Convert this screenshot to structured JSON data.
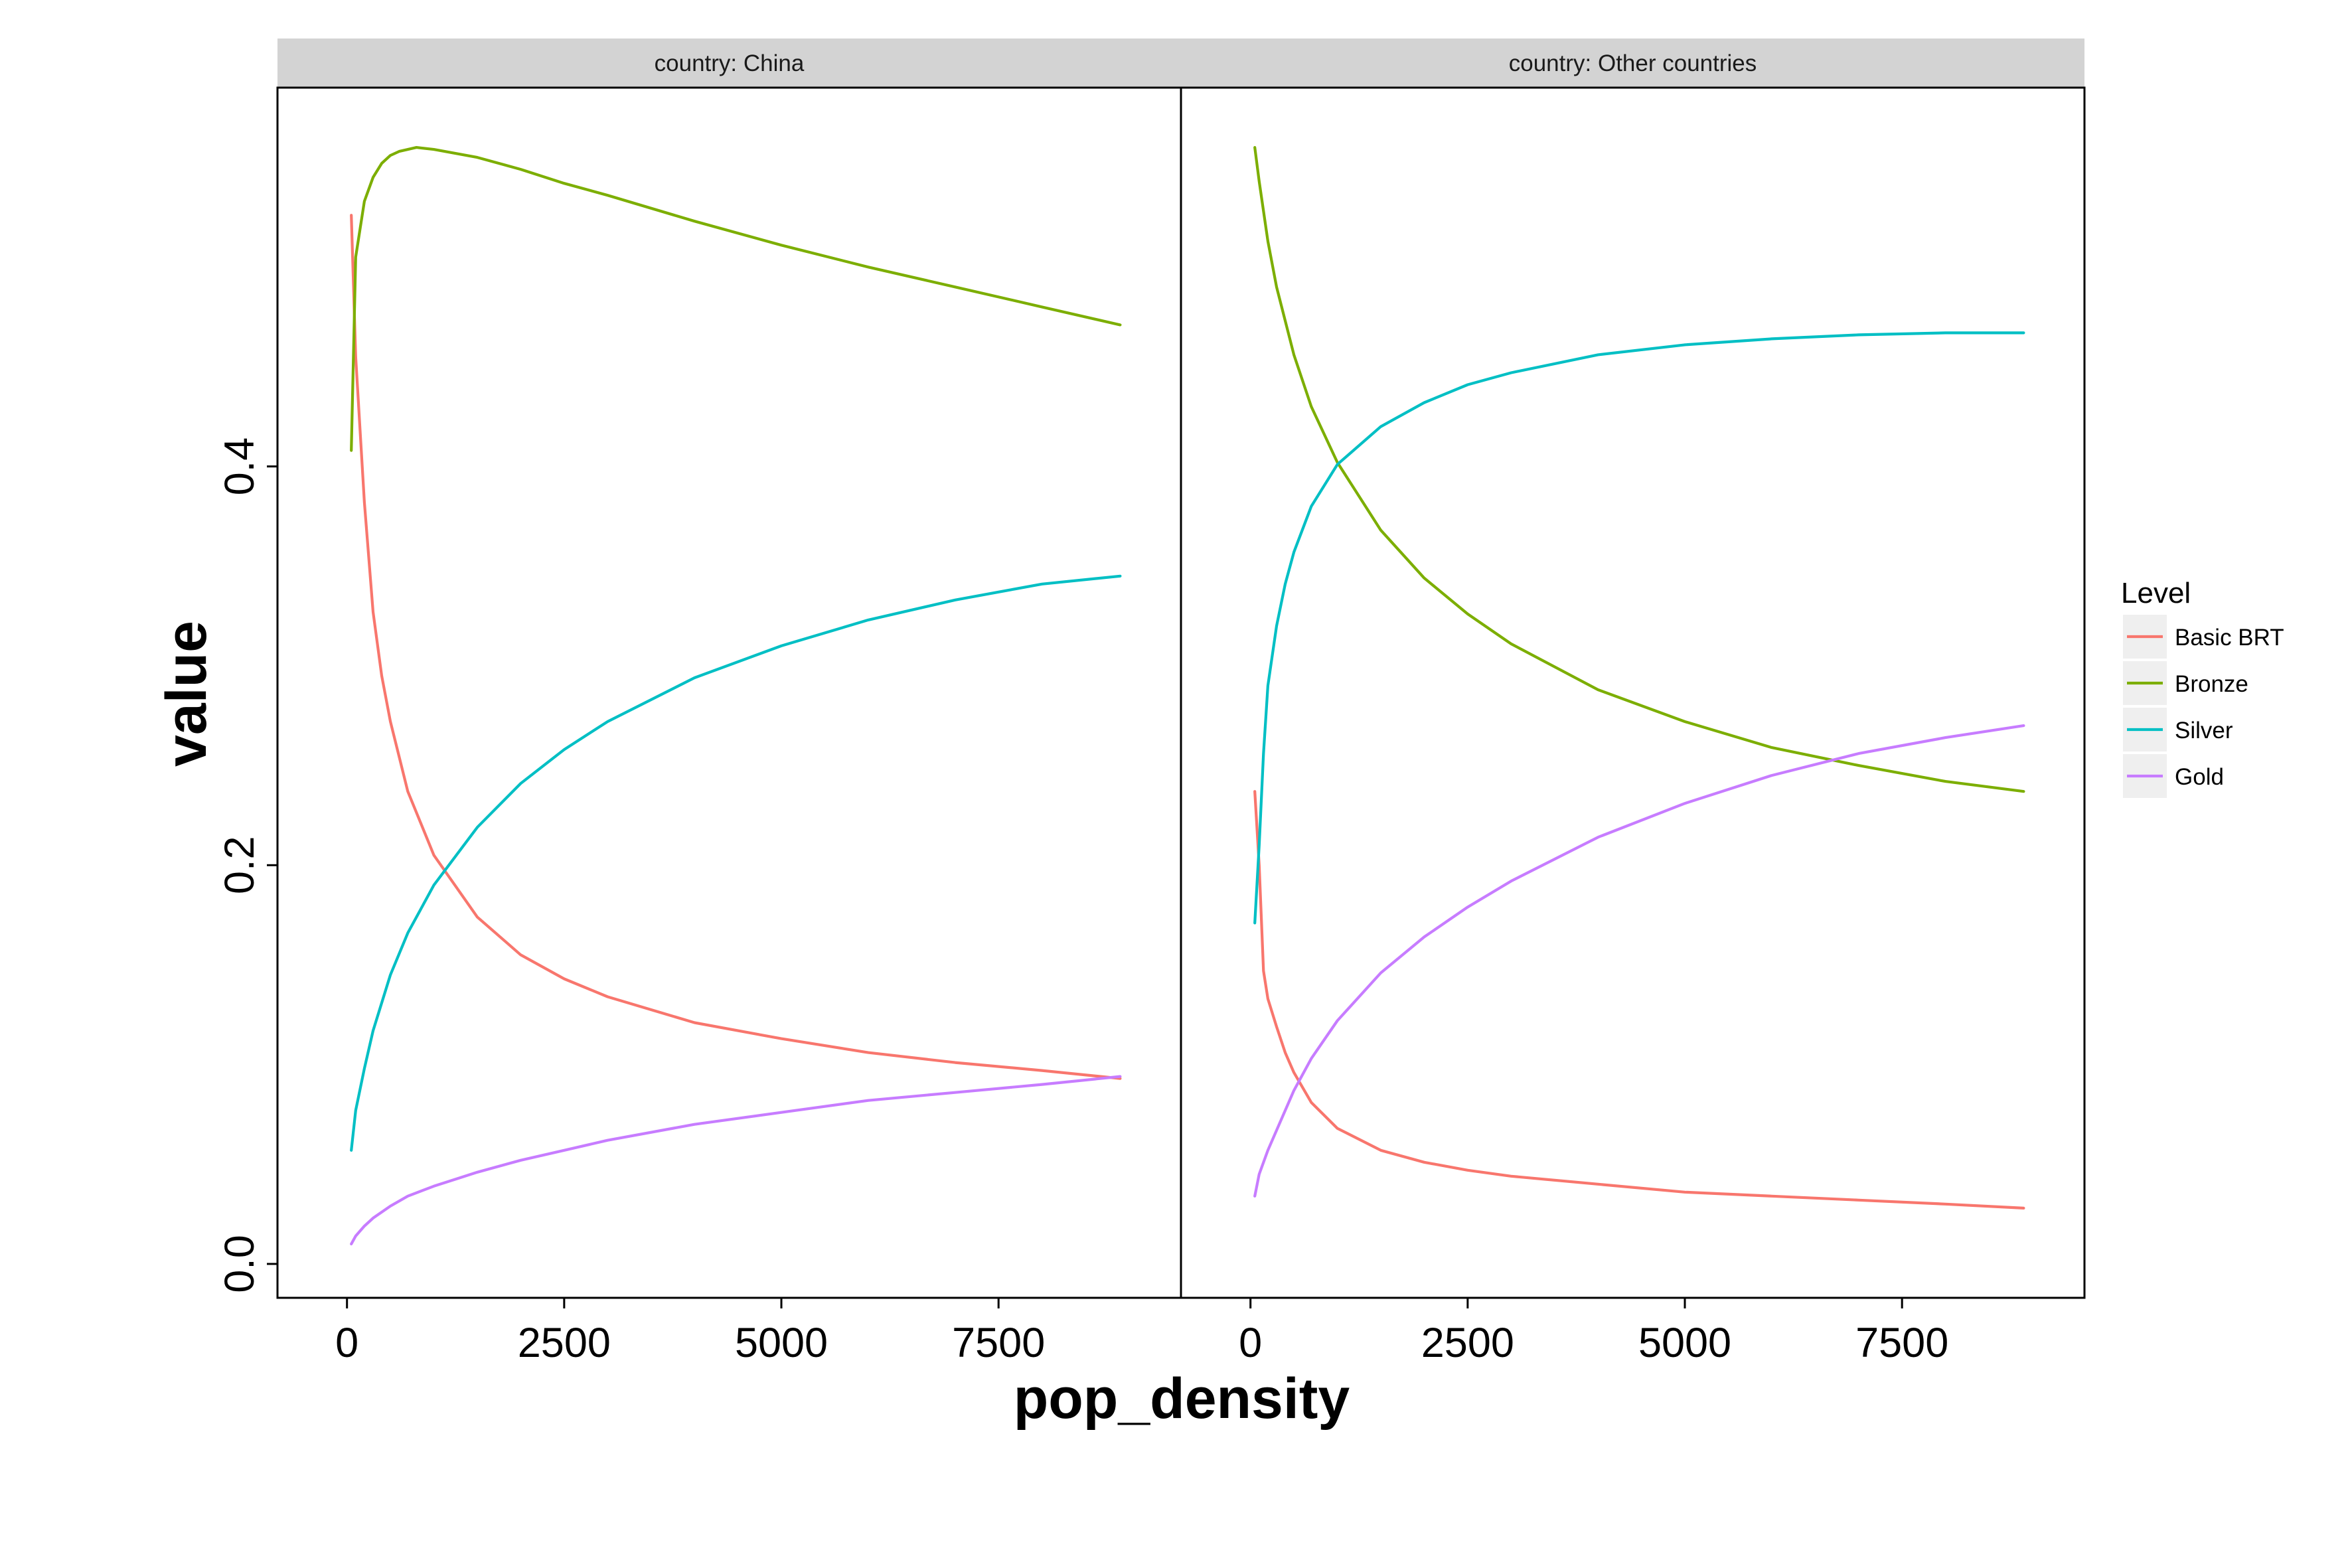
{
  "chart_data": {
    "type": "line",
    "xlabel": "pop_density",
    "ylabel": "value",
    "xlim": [
      -800,
      9600
    ],
    "ylim": [
      -0.017,
      0.59
    ],
    "x_ticks": [
      0,
      2500,
      5000,
      7500
    ],
    "x_tick_labels": [
      "0",
      "2500",
      "5000",
      "7500"
    ],
    "y_ticks": [
      0.0,
      0.2,
      0.4
    ],
    "y_tick_labels": [
      "0.0",
      "0.2",
      "0.4"
    ],
    "grid": false,
    "legend": {
      "title": "Level",
      "position": "right",
      "entries": [
        "Basic BRT",
        "Bronze",
        "Silver",
        "Gold"
      ]
    },
    "colors": {
      "Basic BRT": "#F8766D",
      "Bronze": "#7CAE00",
      "Silver": "#00BFC4",
      "Gold": "#C77CFF"
    },
    "panels": [
      {
        "label": "country: China",
        "series": [
          {
            "name": "Basic BRT",
            "x": [
              50,
              100,
              200,
              300,
              400,
              500,
              700,
              1000,
              1500,
              2000,
              2500,
              3000,
              4000,
              5000,
              6000,
              7000,
              8000,
              8900
            ],
            "y": [
              0.526,
              0.455,
              0.382,
              0.327,
              0.295,
              0.272,
              0.237,
              0.205,
              0.174,
              0.155,
              0.143,
              0.134,
              0.121,
              0.113,
              0.106,
              0.101,
              0.097,
              0.093
            ]
          },
          {
            "name": "Bronze",
            "x": [
              50,
              100,
              200,
              300,
              400,
              500,
              600,
              800,
              1000,
              1500,
              2000,
              2500,
              3000,
              4000,
              5000,
              6000,
              7000,
              8000,
              8900
            ],
            "y": [
              0.408,
              0.505,
              0.533,
              0.545,
              0.552,
              0.556,
              0.558,
              0.56,
              0.559,
              0.555,
              0.549,
              0.542,
              0.536,
              0.523,
              0.511,
              0.5,
              0.49,
              0.48,
              0.471
            ]
          },
          {
            "name": "Silver",
            "x": [
              50,
              100,
              200,
              300,
              500,
              700,
              1000,
              1500,
              2000,
              2500,
              3000,
              4000,
              5000,
              6000,
              7000,
              8000,
              8900
            ],
            "y": [
              0.057,
              0.077,
              0.098,
              0.117,
              0.145,
              0.166,
              0.19,
              0.219,
              0.241,
              0.258,
              0.272,
              0.294,
              0.31,
              0.323,
              0.333,
              0.341,
              0.345
            ]
          },
          {
            "name": "Gold",
            "x": [
              50,
              100,
              200,
              300,
              500,
              700,
              1000,
              1500,
              2000,
              2500,
              3000,
              4000,
              5000,
              6000,
              7000,
              8000,
              8900
            ],
            "y": [
              0.01,
              0.014,
              0.019,
              0.023,
              0.029,
              0.034,
              0.039,
              0.046,
              0.052,
              0.057,
              0.062,
              0.07,
              0.076,
              0.082,
              0.086,
              0.09,
              0.094
            ]
          }
        ]
      },
      {
        "label": "country: Other countries",
        "series": [
          {
            "name": "Basic BRT",
            "x": [
              50,
              100,
              150,
              200,
              300,
              400,
              500,
              700,
              1000,
              1500,
              2000,
              2500,
              3000,
              4000,
              5000,
              6000,
              7000,
              8000,
              8900
            ],
            "y": [
              0.237,
              0.2,
              0.147,
              0.133,
              0.119,
              0.106,
              0.096,
              0.081,
              0.068,
              0.057,
              0.051,
              0.047,
              0.044,
              0.04,
              0.036,
              0.034,
              0.032,
              0.03,
              0.028
            ]
          },
          {
            "name": "Bronze",
            "x": [
              50,
              100,
              200,
              300,
              500,
              700,
              1000,
              1500,
              2000,
              2500,
              3000,
              4000,
              5000,
              6000,
              7000,
              8000,
              8900
            ],
            "y": [
              0.56,
              0.543,
              0.513,
              0.49,
              0.456,
              0.43,
              0.402,
              0.368,
              0.344,
              0.326,
              0.311,
              0.288,
              0.272,
              0.259,
              0.25,
              0.242,
              0.237
            ]
          },
          {
            "name": "Silver",
            "x": [
              50,
              100,
              150,
              200,
              300,
              400,
              500,
              700,
              1000,
              1500,
              2000,
              2500,
              3000,
              4000,
              5000,
              6000,
              7000,
              8000,
              8900
            ],
            "y": [
              0.171,
              0.21,
              0.256,
              0.29,
              0.32,
              0.341,
              0.357,
              0.38,
              0.401,
              0.42,
              0.432,
              0.441,
              0.447,
              0.456,
              0.461,
              0.464,
              0.466,
              0.467,
              0.467
            ]
          },
          {
            "name": "Gold",
            "x": [
              50,
              100,
              200,
              300,
              500,
              700,
              1000,
              1500,
              2000,
              2500,
              3000,
              4000,
              5000,
              6000,
              7000,
              8000,
              8900
            ],
            "y": [
              0.034,
              0.045,
              0.057,
              0.067,
              0.087,
              0.103,
              0.122,
              0.146,
              0.164,
              0.179,
              0.192,
              0.214,
              0.231,
              0.245,
              0.256,
              0.264,
              0.27
            ]
          }
        ]
      }
    ]
  }
}
